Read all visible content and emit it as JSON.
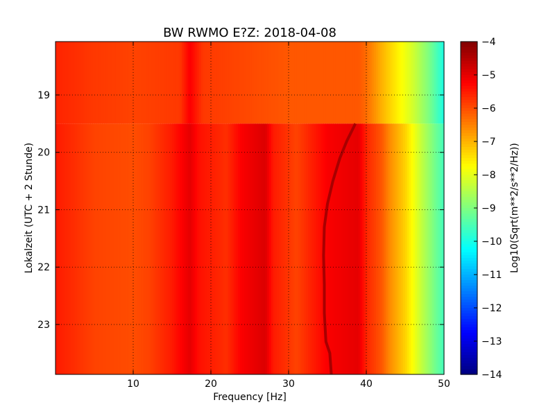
{
  "chart_data": {
    "type": "heatmap",
    "title": "BW RWMO E?Z: 2018-04-08",
    "xlabel": "Frequency [Hz]",
    "ylabel": "Lokalzeit (UTC + 2 Stunde)",
    "xlim": [
      0,
      50
    ],
    "ylim": [
      18.07,
      23.87
    ],
    "y_inverted": true,
    "x_ticks": [
      10,
      20,
      30,
      40,
      50
    ],
    "x_tick_labels": [
      "10",
      "20",
      "30",
      "40",
      "50"
    ],
    "y_ticks": [
      19,
      20,
      21,
      22,
      23
    ],
    "y_tick_labels": [
      "19",
      "20",
      "21",
      "22",
      "23"
    ],
    "grid": true,
    "colorbar": {
      "label": "Log10(Sqrt(m**2/s**2/Hz))",
      "range": [
        -14,
        -4
      ],
      "ticks": [
        -4,
        -5,
        -6,
        -7,
        -8,
        -9,
        -10,
        -11,
        -12,
        -13,
        -14
      ],
      "tick_labels": [
        "−4",
        "−5",
        "−6",
        "−7",
        "−8",
        "−9",
        "−10",
        "−11",
        "−12",
        "−13",
        "−14"
      ],
      "colormap": "jet"
    },
    "gap_time": 19.5,
    "level_profile_before_gap": [
      {
        "f": 0,
        "v": -5.6
      },
      {
        "f": 5,
        "v": -5.8
      },
      {
        "f": 10,
        "v": -5.9
      },
      {
        "f": 16,
        "v": -5.8
      },
      {
        "f": 17.3,
        "v": -5.2
      },
      {
        "f": 19,
        "v": -5.8
      },
      {
        "f": 30,
        "v": -6.1
      },
      {
        "f": 39,
        "v": -6.1
      },
      {
        "f": 40,
        "v": -6.3
      },
      {
        "f": 42,
        "v": -7.0
      },
      {
        "f": 44,
        "v": -7.6
      },
      {
        "f": 46,
        "v": -8.2
      },
      {
        "f": 48,
        "v": -9.0
      },
      {
        "f": 50,
        "v": -10.0
      }
    ],
    "level_profile_after_gap": [
      {
        "f": 0,
        "v": -5.5
      },
      {
        "f": 5,
        "v": -5.9
      },
      {
        "f": 10,
        "v": -6.0
      },
      {
        "f": 12,
        "v": -5.9
      },
      {
        "f": 13.5,
        "v": -5.7
      },
      {
        "f": 15,
        "v": -5.5
      },
      {
        "f": 17.3,
        "v": -5.0
      },
      {
        "f": 18.5,
        "v": -5.4
      },
      {
        "f": 22,
        "v": -5.7
      },
      {
        "f": 24,
        "v": -5.2
      },
      {
        "f": 27,
        "v": -4.9
      },
      {
        "f": 28,
        "v": -5.5
      },
      {
        "f": 31,
        "v": -5.9
      },
      {
        "f": 35,
        "v": -5.2
      },
      {
        "f": 39,
        "v": -5.0
      },
      {
        "f": 40,
        "v": -5.6
      },
      {
        "f": 42,
        "v": -6.1
      },
      {
        "f": 43,
        "v": -6.6
      },
      {
        "f": 45,
        "v": -7.3
      },
      {
        "f": 47,
        "v": -8.3
      },
      {
        "f": 49,
        "v": -9.2
      },
      {
        "f": 50,
        "v": -9.6
      }
    ],
    "tonal_line": [
      {
        "t": 19.5,
        "f": 38.6
      },
      {
        "t": 19.8,
        "f": 37.5
      },
      {
        "t": 20.1,
        "f": 36.6
      },
      {
        "t": 20.5,
        "f": 35.7
      },
      {
        "t": 20.9,
        "f": 35.0
      },
      {
        "t": 21.3,
        "f": 34.6
      },
      {
        "t": 21.8,
        "f": 34.5
      },
      {
        "t": 22.3,
        "f": 34.6
      },
      {
        "t": 22.8,
        "f": 34.6
      },
      {
        "t": 23.3,
        "f": 34.8
      },
      {
        "t": 23.5,
        "f": 35.3
      },
      {
        "t": 23.87,
        "f": 35.5
      }
    ],
    "line_level": -4.4
  }
}
